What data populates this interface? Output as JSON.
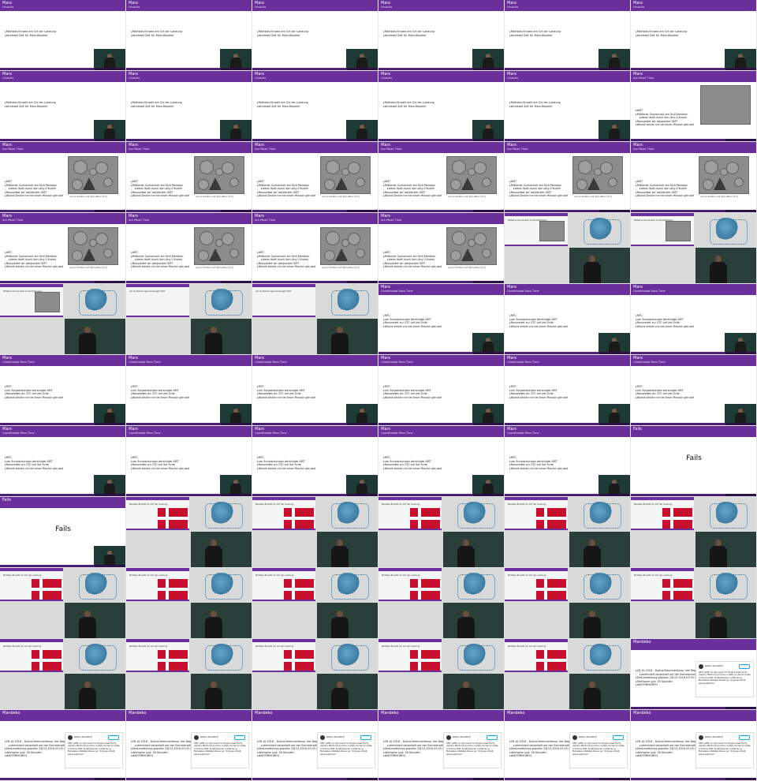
{
  "colors": {
    "header": "#6a2f9a",
    "footer": "#4b1f73",
    "danish_red": "#c8102e"
  },
  "text": {
    "mars": "Mars",
    "sub_ursache": "Ursache",
    "sub_amt": "Are Mean Time",
    "sub_ct": "Coordinated Mars Time",
    "fails": "Fails",
    "mandeko": "Mandeko",
    "u1": "Metrikes Einsatz am Ort der Landung",
    "u2": "keinlebst Zeit für Mars-Roboter",
    "a0": "AMT",
    "a1": "Mittleres Sonnenzeit am Null-Meridian",
    "a2": "diese läuft durch den Airy-0 Krater",
    "a3": "Rauszeitet wir abspeziert GMT",
    "a4": "Wurde bisher nie bei einer Mission genutzt",
    "mars_caption": "Airy-0 Krater auf dem Mars [17]",
    "c0": "MTC",
    "c1": "um Schwankungen bereinigte AMT",
    "c2": "Rauszeitet zur UTC auf der Erde",
    "c3": "Wurde bisher nie bei einer Mission genutzt",
    "d1": "28.10.2018 – Kultus Beschneidung: alle Regierung",
    "d2": "verhindert dauerhaft auf der Sommerzeit zu bleiben",
    "d3": "Zeitumstellung geplant: 28.10.2018 03:00 Uhr",
    "d4": "Vertrauen gut: 16 Stunden",
    "d5": "#NOTREKORFH",
    "tw_name": "stefan dienstlich",
    "tw_body": "GMT (GMT+1) has used it to Engine Dear Doris (Gentry Montrock) prime e a wells du Verner antes in France GMT. Foretellments: in Mercile le Mensieben-tabelles blaues go: @ government types switched"
  }
}
